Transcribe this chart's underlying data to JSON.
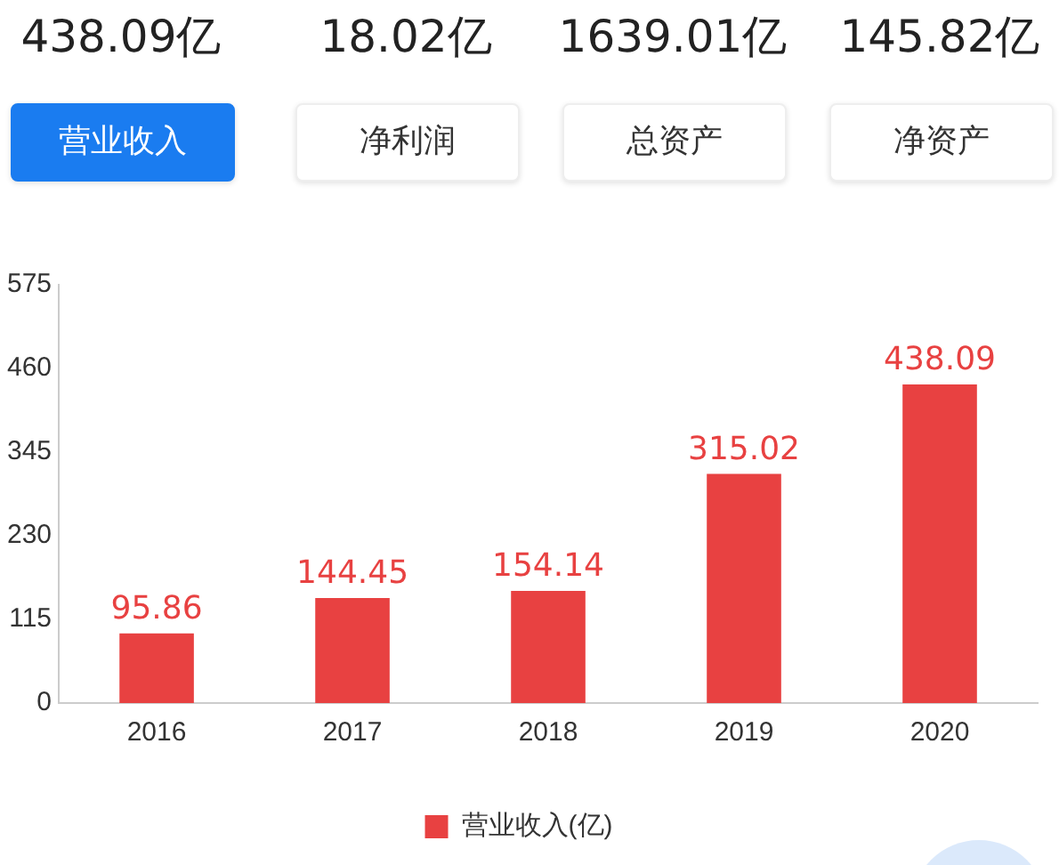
{
  "chart_data": {
    "type": "bar",
    "categories": [
      "2016",
      "2017",
      "2018",
      "2019",
      "2020"
    ],
    "series": [
      {
        "name": "营业收入(亿)",
        "color": "#e84141",
        "values": [
          95.86,
          144.45,
          154.14,
          315.02,
          438.09
        ]
      }
    ],
    "ylim": [
      0,
      575
    ],
    "yticks": [
      0,
      115,
      230,
      345,
      460,
      575
    ],
    "grid": false,
    "legend": "bottom",
    "data_labels": true,
    "annotations": [
      "438.09亿",
      "18.02亿",
      "1639.01亿",
      "145.82亿",
      "营业收入",
      "净利润",
      "总资产",
      "净资产"
    ]
  }
}
